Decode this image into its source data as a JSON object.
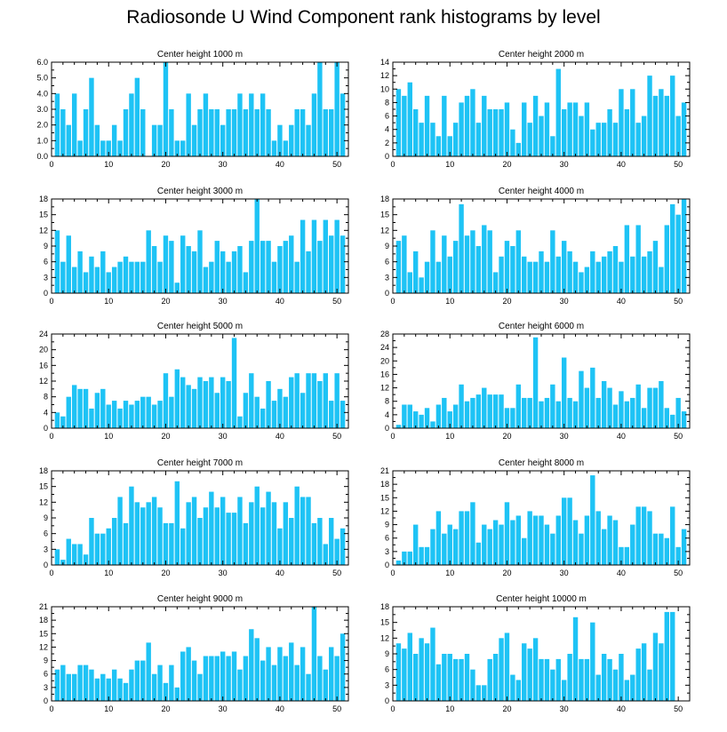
{
  "figure_title": "Radiosonde U Wind Component rank histograms by level",
  "colors": {
    "bar": "#1ec3f5",
    "axis": "#000000"
  },
  "chart_data": [
    {
      "type": "bar",
      "title": "Center height 1000 m",
      "x": [
        0,
        1,
        2,
        3,
        4,
        5,
        6,
        7,
        8,
        9,
        10,
        11,
        12,
        13,
        14,
        15,
        16,
        17,
        18,
        19,
        20,
        21,
        22,
        23,
        24,
        25,
        26,
        27,
        28,
        29,
        30,
        31,
        32,
        33,
        34,
        35,
        36,
        37,
        38,
        39,
        40,
        41,
        42,
        43,
        44,
        45,
        46,
        47,
        48,
        49,
        50,
        51
      ],
      "values": [
        0,
        4,
        3,
        2,
        4,
        1,
        3,
        5,
        2,
        1,
        1,
        2,
        1,
        3,
        4,
        5,
        3,
        0,
        2,
        2,
        6,
        3,
        1,
        1,
        4,
        2,
        3,
        4,
        3,
        3,
        2,
        3,
        3,
        4,
        3,
        4,
        3,
        4,
        3,
        1,
        2,
        1,
        2,
        3,
        3,
        2,
        4,
        6,
        3,
        3,
        6,
        4
      ],
      "xlim": [
        0,
        52
      ],
      "ylim": [
        0,
        6
      ],
      "xticks": [
        0,
        10,
        20,
        30,
        40,
        50
      ],
      "yticks": [
        0.0,
        1.0,
        2.0,
        3.0,
        4.0,
        5.0,
        6.0
      ],
      "ytick_labels": [
        "0.0",
        "1.0",
        "2.0",
        "3.0",
        "4.0",
        "5.0",
        "6.0"
      ]
    },
    {
      "type": "bar",
      "title": "Center height 2000 m",
      "x": [
        0,
        1,
        2,
        3,
        4,
        5,
        6,
        7,
        8,
        9,
        10,
        11,
        12,
        13,
        14,
        15,
        16,
        17,
        18,
        19,
        20,
        21,
        22,
        23,
        24,
        25,
        26,
        27,
        28,
        29,
        30,
        31,
        32,
        33,
        34,
        35,
        36,
        37,
        38,
        39,
        40,
        41,
        42,
        43,
        44,
        45,
        46,
        47,
        48,
        49,
        50,
        51
      ],
      "values": [
        0,
        10,
        9,
        11,
        7,
        5,
        9,
        5,
        3,
        9,
        3,
        5,
        8,
        9,
        10,
        5,
        9,
        7,
        7,
        7,
        8,
        4,
        2,
        8,
        5,
        9,
        6,
        8,
        3,
        13,
        7,
        8,
        8,
        6,
        8,
        4,
        5,
        5,
        7,
        5,
        10,
        7,
        10,
        5,
        6,
        12,
        9,
        10,
        9,
        12,
        6,
        8
      ],
      "xlim": [
        0,
        52
      ],
      "ylim": [
        0,
        14
      ],
      "xticks": [
        0,
        10,
        20,
        30,
        40,
        50
      ],
      "yticks": [
        0,
        2,
        4,
        6,
        8,
        10,
        12,
        14
      ],
      "ytick_labels": [
        "0",
        "2",
        "4",
        "6",
        "8",
        "10",
        "12",
        "14"
      ]
    },
    {
      "type": "bar",
      "title": "Center height 3000 m",
      "x": [
        0,
        1,
        2,
        3,
        4,
        5,
        6,
        7,
        8,
        9,
        10,
        11,
        12,
        13,
        14,
        15,
        16,
        17,
        18,
        19,
        20,
        21,
        22,
        23,
        24,
        25,
        26,
        27,
        28,
        29,
        30,
        31,
        32,
        33,
        34,
        35,
        36,
        37,
        38,
        39,
        40,
        41,
        42,
        43,
        44,
        45,
        46,
        47,
        48,
        49,
        50,
        51
      ],
      "values": [
        0,
        12,
        6,
        11,
        5,
        8,
        4,
        7,
        5,
        8,
        4,
        5,
        6,
        7,
        6,
        6,
        6,
        12,
        9,
        6,
        11,
        10,
        2,
        11,
        9,
        8,
        12,
        5,
        6,
        10,
        8,
        6,
        8,
        9,
        4,
        10,
        18,
        10,
        10,
        6,
        9,
        10,
        11,
        6,
        14,
        8,
        14,
        10,
        14,
        11,
        14,
        11
      ],
      "xlim": [
        0,
        52
      ],
      "ylim": [
        0,
        18
      ],
      "xticks": [
        0,
        10,
        20,
        30,
        40,
        50
      ],
      "yticks": [
        0,
        3,
        6,
        9,
        12,
        15,
        18
      ],
      "ytick_labels": [
        "0",
        "3",
        "6",
        "9",
        "12",
        "15",
        "18"
      ]
    },
    {
      "type": "bar",
      "title": "Center height 4000 m",
      "x": [
        0,
        1,
        2,
        3,
        4,
        5,
        6,
        7,
        8,
        9,
        10,
        11,
        12,
        13,
        14,
        15,
        16,
        17,
        18,
        19,
        20,
        21,
        22,
        23,
        24,
        25,
        26,
        27,
        28,
        29,
        30,
        31,
        32,
        33,
        34,
        35,
        36,
        37,
        38,
        39,
        40,
        41,
        42,
        43,
        44,
        45,
        46,
        47,
        48,
        49,
        50,
        51
      ],
      "values": [
        0,
        10,
        11,
        4,
        8,
        3,
        6,
        12,
        6,
        11,
        7,
        10,
        17,
        11,
        12,
        9,
        13,
        12,
        4,
        7,
        10,
        9,
        12,
        7,
        6,
        6,
        8,
        6,
        12,
        7,
        10,
        8,
        6,
        4,
        5,
        8,
        6,
        7,
        8,
        9,
        6,
        13,
        7,
        13,
        7,
        8,
        10,
        5,
        13,
        17,
        15,
        18
      ],
      "xlim": [
        0,
        52
      ],
      "ylim": [
        0,
        18
      ],
      "xticks": [
        0,
        10,
        20,
        30,
        40,
        50
      ],
      "yticks": [
        0,
        3,
        6,
        9,
        12,
        15,
        18
      ],
      "ytick_labels": [
        "0",
        "3",
        "6",
        "9",
        "12",
        "15",
        "18"
      ]
    },
    {
      "type": "bar",
      "title": "Center height 5000 m",
      "x": [
        0,
        1,
        2,
        3,
        4,
        5,
        6,
        7,
        8,
        9,
        10,
        11,
        12,
        13,
        14,
        15,
        16,
        17,
        18,
        19,
        20,
        21,
        22,
        23,
        24,
        25,
        26,
        27,
        28,
        29,
        30,
        31,
        32,
        33,
        34,
        35,
        36,
        37,
        38,
        39,
        40,
        41,
        42,
        43,
        44,
        45,
        46,
        47,
        48,
        49,
        50,
        51
      ],
      "values": [
        0,
        4,
        3,
        8,
        11,
        10,
        10,
        5,
        9,
        10,
        6,
        7,
        5,
        7,
        6,
        7,
        8,
        8,
        6,
        7,
        14,
        8,
        15,
        13,
        11,
        10,
        13,
        12,
        13,
        9,
        13,
        12,
        23,
        3,
        9,
        14,
        8,
        5,
        12,
        7,
        10,
        8,
        13,
        14,
        9,
        14,
        14,
        12,
        14,
        7,
        14,
        7
      ],
      "xlim": [
        0,
        52
      ],
      "ylim": [
        0,
        24
      ],
      "xticks": [
        0,
        10,
        20,
        30,
        40,
        50
      ],
      "yticks": [
        0,
        4,
        8,
        12,
        16,
        20,
        24
      ],
      "ytick_labels": [
        "0",
        "4",
        "8",
        "12",
        "16",
        "20",
        "24"
      ]
    },
    {
      "type": "bar",
      "title": "Center height 6000 m",
      "x": [
        0,
        1,
        2,
        3,
        4,
        5,
        6,
        7,
        8,
        9,
        10,
        11,
        12,
        13,
        14,
        15,
        16,
        17,
        18,
        19,
        20,
        21,
        22,
        23,
        24,
        25,
        26,
        27,
        28,
        29,
        30,
        31,
        32,
        33,
        34,
        35,
        36,
        37,
        38,
        39,
        40,
        41,
        42,
        43,
        44,
        45,
        46,
        47,
        48,
        49,
        50,
        51
      ],
      "values": [
        0,
        1,
        7,
        7,
        5,
        4,
        6,
        2,
        7,
        9,
        5,
        7,
        13,
        8,
        9,
        10,
        12,
        10,
        10,
        10,
        6,
        6,
        13,
        9,
        9,
        27,
        8,
        9,
        13,
        8,
        21,
        9,
        8,
        17,
        12,
        18,
        9,
        14,
        12,
        7,
        11,
        8,
        9,
        13,
        6,
        12,
        12,
        14,
        6,
        4,
        9,
        5
      ],
      "xlim": [
        0,
        52
      ],
      "ylim": [
        0,
        28
      ],
      "xticks": [
        0,
        10,
        20,
        30,
        40,
        50
      ],
      "yticks": [
        0,
        4,
        8,
        12,
        16,
        20,
        24,
        28
      ],
      "ytick_labels": [
        "0",
        "4",
        "8",
        "12",
        "16",
        "20",
        "24",
        "28"
      ]
    },
    {
      "type": "bar",
      "title": "Center height 7000 m",
      "x": [
        0,
        1,
        2,
        3,
        4,
        5,
        6,
        7,
        8,
        9,
        10,
        11,
        12,
        13,
        14,
        15,
        16,
        17,
        18,
        19,
        20,
        21,
        22,
        23,
        24,
        25,
        26,
        27,
        28,
        29,
        30,
        31,
        32,
        33,
        34,
        35,
        36,
        37,
        38,
        39,
        40,
        41,
        42,
        43,
        44,
        45,
        46,
        47,
        48,
        49,
        50,
        51
      ],
      "values": [
        0,
        3,
        1,
        5,
        4,
        4,
        2,
        9,
        6,
        6,
        7,
        9,
        13,
        8,
        15,
        12,
        11,
        12,
        13,
        11,
        8,
        8,
        16,
        7,
        12,
        13,
        9,
        11,
        14,
        11,
        13,
        10,
        10,
        13,
        8,
        12,
        15,
        11,
        14,
        12,
        7,
        12,
        9,
        15,
        13,
        13,
        8,
        9,
        4,
        9,
        5,
        7
      ],
      "xlim": [
        0,
        52
      ],
      "ylim": [
        0,
        18
      ],
      "xticks": [
        0,
        10,
        20,
        30,
        40,
        50
      ],
      "yticks": [
        0,
        3,
        6,
        9,
        12,
        15,
        18
      ],
      "ytick_labels": [
        "0",
        "3",
        "6",
        "9",
        "12",
        "15",
        "18"
      ]
    },
    {
      "type": "bar",
      "title": "Center height 8000 m",
      "x": [
        0,
        1,
        2,
        3,
        4,
        5,
        6,
        7,
        8,
        9,
        10,
        11,
        12,
        13,
        14,
        15,
        16,
        17,
        18,
        19,
        20,
        21,
        22,
        23,
        24,
        25,
        26,
        27,
        28,
        29,
        30,
        31,
        32,
        33,
        34,
        35,
        36,
        37,
        38,
        39,
        40,
        41,
        42,
        43,
        44,
        45,
        46,
        47,
        48,
        49,
        50,
        51
      ],
      "values": [
        0,
        1,
        3,
        3,
        9,
        4,
        4,
        8,
        12,
        7,
        9,
        8,
        12,
        12,
        14,
        5,
        9,
        8,
        10,
        9,
        14,
        10,
        11,
        6,
        12,
        11,
        11,
        9,
        7,
        11,
        15,
        15,
        10,
        7,
        11,
        20,
        12,
        8,
        11,
        10,
        4,
        4,
        9,
        13,
        13,
        12,
        7,
        7,
        6,
        13,
        4,
        8
      ],
      "xlim": [
        0,
        52
      ],
      "ylim": [
        0,
        21
      ],
      "xticks": [
        0,
        10,
        20,
        30,
        40,
        50
      ],
      "yticks": [
        0,
        3,
        6,
        9,
        12,
        15,
        18,
        21
      ],
      "ytick_labels": [
        "0",
        "3",
        "6",
        "9",
        "12",
        "15",
        "18",
        "21"
      ]
    },
    {
      "type": "bar",
      "title": "Center height 9000 m",
      "x": [
        0,
        1,
        2,
        3,
        4,
        5,
        6,
        7,
        8,
        9,
        10,
        11,
        12,
        13,
        14,
        15,
        16,
        17,
        18,
        19,
        20,
        21,
        22,
        23,
        24,
        25,
        26,
        27,
        28,
        29,
        30,
        31,
        32,
        33,
        34,
        35,
        36,
        37,
        38,
        39,
        40,
        41,
        42,
        43,
        44,
        45,
        46,
        47,
        48,
        49,
        50,
        51
      ],
      "values": [
        0,
        7,
        8,
        6,
        6,
        8,
        8,
        7,
        5,
        6,
        5,
        7,
        5,
        4,
        7,
        9,
        9,
        13,
        6,
        8,
        4,
        8,
        3,
        11,
        12,
        9,
        6,
        10,
        10,
        10,
        11,
        10,
        11,
        7,
        10,
        16,
        14,
        9,
        12,
        8,
        12,
        10,
        13,
        8,
        12,
        6,
        21,
        10,
        7,
        12,
        10,
        15
      ],
      "xlim": [
        0,
        52
      ],
      "ylim": [
        0,
        21
      ],
      "xticks": [
        0,
        10,
        20,
        30,
        40,
        50
      ],
      "yticks": [
        0,
        3,
        6,
        9,
        12,
        15,
        18,
        21
      ],
      "ytick_labels": [
        "0",
        "3",
        "6",
        "9",
        "12",
        "15",
        "18",
        "21"
      ]
    },
    {
      "type": "bar",
      "title": "Center height 10000 m",
      "x": [
        0,
        1,
        2,
        3,
        4,
        5,
        6,
        7,
        8,
        9,
        10,
        11,
        12,
        13,
        14,
        15,
        16,
        17,
        18,
        19,
        20,
        21,
        22,
        23,
        24,
        25,
        26,
        27,
        28,
        29,
        30,
        31,
        32,
        33,
        34,
        35,
        36,
        37,
        38,
        39,
        40,
        41,
        42,
        43,
        44,
        45,
        46,
        47,
        48,
        49,
        50,
        51
      ],
      "values": [
        0,
        11,
        10,
        13,
        9,
        12,
        11,
        14,
        7,
        9,
        9,
        8,
        8,
        9,
        6,
        3,
        3,
        8,
        9,
        12,
        13,
        5,
        4,
        11,
        10,
        12,
        8,
        8,
        6,
        8,
        4,
        9,
        16,
        8,
        8,
        15,
        5,
        9,
        8,
        6,
        9,
        4,
        5,
        10,
        11,
        6,
        13,
        11,
        17,
        17,
        0,
        0
      ],
      "xlim": [
        0,
        52
      ],
      "ylim": [
        0,
        18
      ],
      "xticks": [
        0,
        10,
        20,
        30,
        40,
        50
      ],
      "yticks": [
        0,
        3,
        6,
        9,
        12,
        15,
        18
      ],
      "ytick_labels": [
        "0",
        "3",
        "6",
        "9",
        "12",
        "15",
        "18"
      ]
    }
  ]
}
